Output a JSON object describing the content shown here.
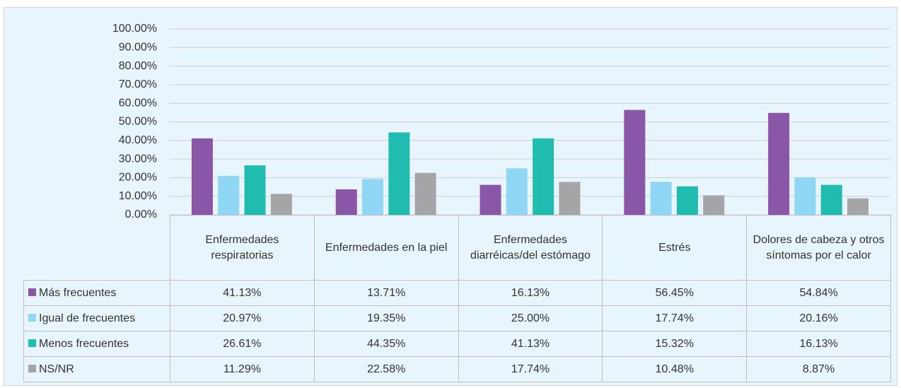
{
  "chart_data": {
    "type": "bar",
    "categories": [
      "Enfermedades respiratorias",
      "Enfermedades en la piel",
      "Enfermedades diarréicas/del estómago",
      "Estrés",
      "Dolores de cabeza y otros síntomas por el calor"
    ],
    "series": [
      {
        "name": "Más frecuentes",
        "color": "#8a56a7",
        "values": [
          41.13,
          13.71,
          16.13,
          56.45,
          54.84
        ],
        "value_labels": [
          "41.13%",
          "13.71%",
          "16.13%",
          "56.45%",
          "54.84%"
        ]
      },
      {
        "name": "Igual de frecuentes",
        "color": "#8fd7f4",
        "values": [
          20.97,
          19.35,
          25.0,
          17.74,
          20.16
        ],
        "value_labels": [
          "20.97%",
          "19.35%",
          "25.00%",
          "17.74%",
          "20.16%"
        ]
      },
      {
        "name": "Menos frecuentes",
        "color": "#20bcb0",
        "values": [
          26.61,
          44.35,
          41.13,
          15.32,
          16.13
        ],
        "value_labels": [
          "26.61%",
          "44.35%",
          "41.13%",
          "15.32%",
          "16.13%"
        ]
      },
      {
        "name": "NS/NR",
        "color": "#a5a5a7",
        "values": [
          11.29,
          22.58,
          17.74,
          10.48,
          8.87
        ],
        "value_labels": [
          "11.29%",
          "22.58%",
          "17.74%",
          "10.48%",
          "8.87%"
        ]
      }
    ],
    "ylim": [
      0,
      100
    ],
    "yticks": [
      {
        "value": 0,
        "label": "0.00%"
      },
      {
        "value": 10,
        "label": "10.00%"
      },
      {
        "value": 20,
        "label": "20.00%"
      },
      {
        "value": 30,
        "label": "30.00%"
      },
      {
        "value": 40,
        "label": "40.00%"
      },
      {
        "value": 50,
        "label": "50.00%"
      },
      {
        "value": 60,
        "label": "60.00%"
      },
      {
        "value": 70,
        "label": "70.00%"
      },
      {
        "value": 80,
        "label": "80.00%"
      },
      {
        "value": 90,
        "label": "90.00%"
      },
      {
        "value": 100,
        "label": "100.00%"
      }
    ],
    "grid": true
  }
}
